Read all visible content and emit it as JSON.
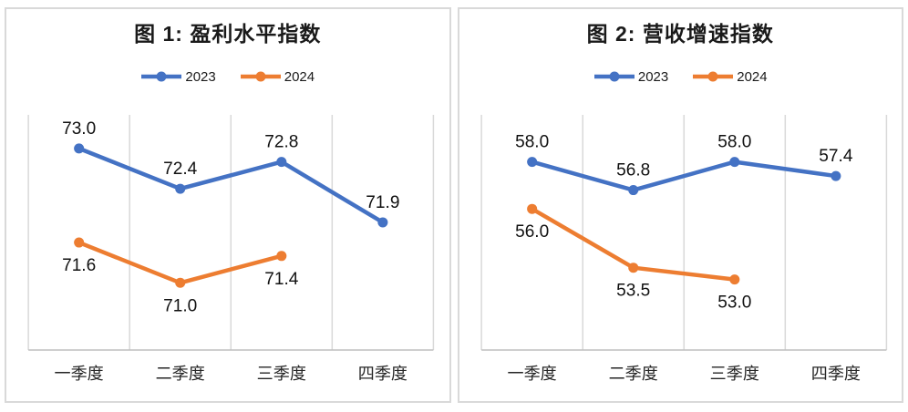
{
  "colors": {
    "blue": "#4472C4",
    "orange": "#ED7D31",
    "grid": "#D9D9D9",
    "axis_line": "#BFBFBF",
    "text": "#1a1a1a",
    "panel_border": "#D9D9D9",
    "background": "#ffffff"
  },
  "chart_data": [
    {
      "type": "line",
      "title": "图 1: 盈利水平指数",
      "categories": [
        "一季度",
        "二季度",
        "三季度",
        "四季度"
      ],
      "xlabel": "",
      "ylabel": "",
      "ylim": [
        70,
        73.5
      ],
      "grid": "vertical-only",
      "legend_position": "top",
      "series": [
        {
          "name": "2023",
          "color": "#4472C4",
          "values": [
            73.0,
            72.4,
            72.8,
            71.9
          ],
          "labels": [
            "73.0",
            "72.4",
            "72.8",
            "71.9"
          ],
          "label_position": "above"
        },
        {
          "name": "2024",
          "color": "#ED7D31",
          "values": [
            71.6,
            71.0,
            71.4,
            null
          ],
          "labels": [
            "71.6",
            "71.0",
            "71.4",
            null
          ],
          "label_position": "below"
        }
      ]
    },
    {
      "type": "line",
      "title": "图 2: 营收增速指数",
      "categories": [
        "一季度",
        "二季度",
        "三季度",
        "四季度"
      ],
      "xlabel": "",
      "ylabel": "",
      "ylim": [
        50,
        60
      ],
      "grid": "vertical-only",
      "legend_position": "top",
      "series": [
        {
          "name": "2023",
          "color": "#4472C4",
          "values": [
            58.0,
            56.8,
            58.0,
            57.4
          ],
          "labels": [
            "58.0",
            "56.8",
            "58.0",
            "57.4"
          ],
          "label_position": "above"
        },
        {
          "name": "2024",
          "color": "#ED7D31",
          "values": [
            56.0,
            53.5,
            53.0,
            null
          ],
          "labels": [
            "56.0",
            "53.5",
            "53.0",
            null
          ],
          "label_position": "below"
        }
      ]
    }
  ]
}
